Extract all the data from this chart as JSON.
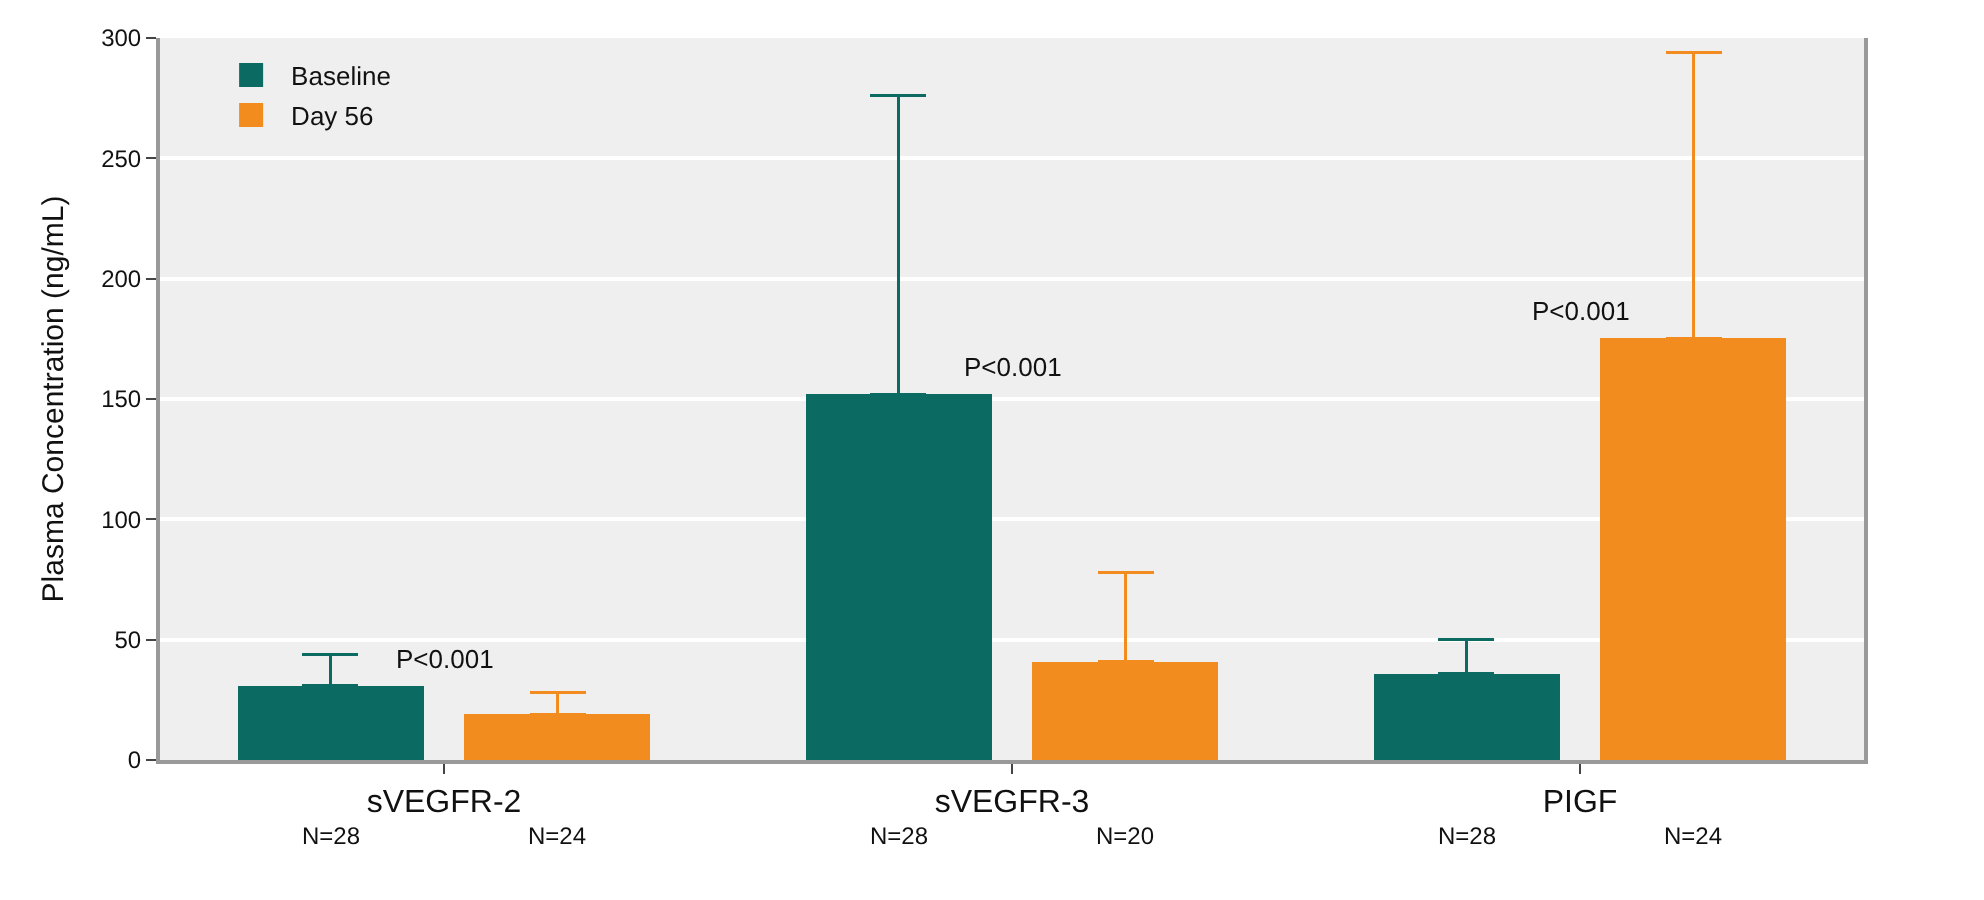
{
  "chart_data": {
    "type": "bar",
    "ylabel": "Plasma Concentration (ng/mL)",
    "categories": [
      "sVEGFR-2",
      "sVEGFR-3",
      "PIGF"
    ],
    "series": [
      {
        "name": "Baseline",
        "color": "#0b6b62",
        "values": [
          31,
          152,
          36
        ],
        "errors": [
          [
            31,
            44
          ],
          [
            152,
            276
          ],
          [
            36,
            50
          ]
        ]
      },
      {
        "name": "Day 56",
        "color": "#f28c1e",
        "values": [
          19,
          41,
          175
        ],
        "errors": [
          [
            19,
            28
          ],
          [
            41,
            78
          ],
          [
            175,
            294
          ]
        ]
      }
    ],
    "ylim": [
      0,
      300
    ],
    "yticks": [
      0,
      50,
      100,
      150,
      200,
      250,
      300
    ],
    "grid": "y",
    "legend": "top left",
    "annotations": [
      "P<0.001",
      "P<0.001",
      "P<0.001",
      "N=28",
      "N=24",
      "N=28",
      "N=20",
      "N=28",
      "N=24"
    ]
  }
}
